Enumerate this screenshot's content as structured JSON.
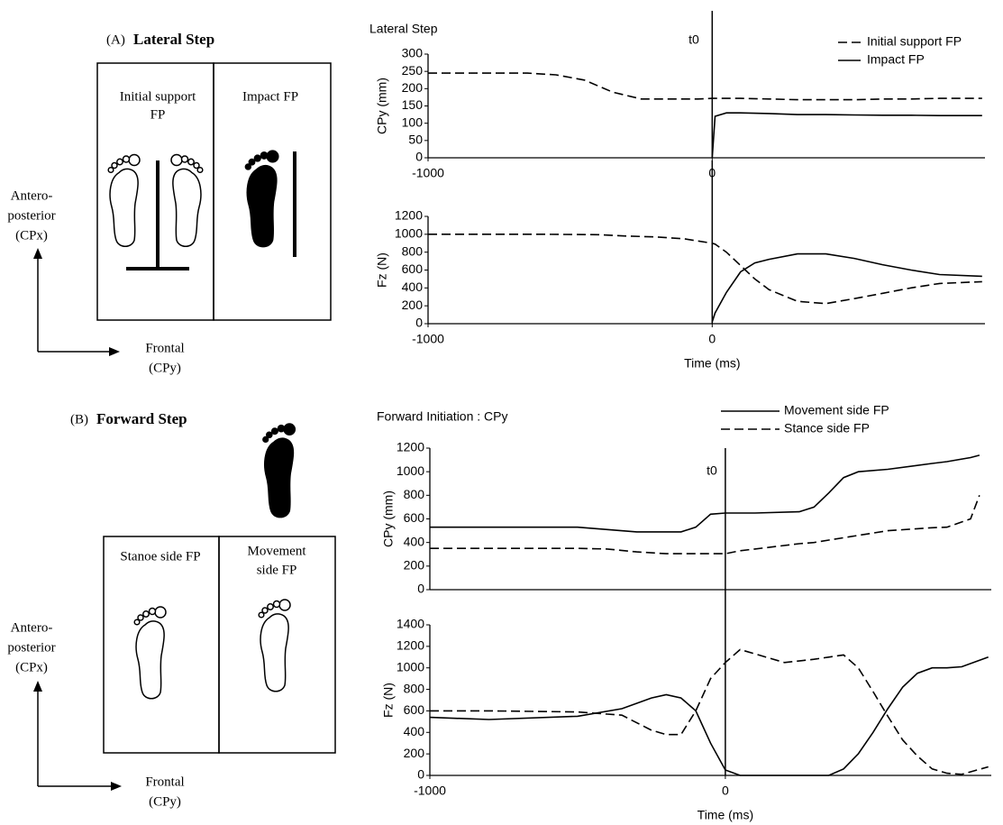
{
  "diagrams": [
    {
      "panel_label": "(A)",
      "title": "Lateral Step",
      "plates": [
        {
          "lines": [
            "Initial support",
            "FP"
          ]
        },
        {
          "lines": [
            "Impact FP"
          ]
        }
      ],
      "vertical_axis_lines": [
        "Antero-",
        "posterior",
        "(CPx)"
      ],
      "horizontal_axis_lines": [
        "Frontal",
        "(CPy)"
      ]
    },
    {
      "panel_label": "(B)",
      "title": "Forward Step",
      "plates": [
        {
          "lines": [
            "Stanoe side FP"
          ]
        },
        {
          "lines": [
            "Movement",
            "side FP"
          ]
        }
      ],
      "vertical_axis_lines": [
        "Antero-",
        "posterior",
        "(CPx)"
      ],
      "horizontal_axis_lines": [
        "Frontal",
        "(CPy)"
      ]
    }
  ],
  "chart_data": [
    {
      "type": "line",
      "title": "Lateral Step",
      "y_label": "CPy (mm)",
      "annotations": [
        {
          "text": "t0",
          "x": 0
        }
      ],
      "legend": "upper right",
      "x": [
        -1000,
        -800,
        -650,
        -550,
        -450,
        -350,
        -250,
        -150,
        -50,
        0,
        10,
        50,
        100,
        200,
        300,
        400,
        500,
        600,
        700,
        800,
        950
      ],
      "series": [
        {
          "name": "Initial support FP",
          "color": "#000000",
          "style": "dashed",
          "values": [
            245,
            245,
            245,
            240,
            225,
            190,
            170,
            170,
            170,
            172,
            172,
            172,
            172,
            170,
            168,
            168,
            168,
            170,
            170,
            172,
            172
          ]
        },
        {
          "name": "Impact FP",
          "color": "#000000",
          "style": "solid",
          "values": [
            null,
            null,
            null,
            null,
            null,
            null,
            null,
            null,
            null,
            0,
            120,
            130,
            130,
            128,
            125,
            125,
            124,
            123,
            123,
            122,
            122
          ]
        }
      ],
      "xlim": [
        -1000,
        960
      ],
      "xticks": [
        -1000,
        0
      ],
      "ylim": [
        0,
        300
      ],
      "yticks": [
        0,
        50,
        100,
        150,
        200,
        250,
        300
      ],
      "grid": false
    },
    {
      "type": "line",
      "x_label": "Time (ms)",
      "y_label": "Fz (N)",
      "x": [
        -1000,
        -800,
        -600,
        -400,
        -300,
        -200,
        -100,
        0,
        10,
        50,
        100,
        150,
        200,
        300,
        400,
        500,
        600,
        700,
        800,
        950
      ],
      "series": [
        {
          "color": "#000000",
          "style": "dashed",
          "values": [
            1000,
            1000,
            1000,
            995,
            980,
            970,
            950,
            900,
            890,
            800,
            650,
            500,
            380,
            250,
            225,
            280,
            340,
            400,
            450,
            470
          ]
        },
        {
          "color": "#000000",
          "style": "solid",
          "values": [
            null,
            null,
            null,
            null,
            null,
            null,
            null,
            20,
            120,
            350,
            580,
            680,
            720,
            780,
            780,
            730,
            660,
            600,
            550,
            530
          ]
        }
      ],
      "xlim": [
        -1000,
        960
      ],
      "xticks": [
        -1000,
        0
      ],
      "ylim": [
        0,
        1200
      ],
      "yticks": [
        0,
        200,
        400,
        600,
        800,
        1000,
        1200
      ],
      "grid": false
    },
    {
      "type": "line",
      "title": "Forward Initiation : CPy",
      "y_label": "CPy (mm)",
      "annotations": [
        {
          "text": "t0",
          "x": 0
        }
      ],
      "legend": "top",
      "x": [
        -1000,
        -700,
        -500,
        -400,
        -300,
        -200,
        -150,
        -100,
        -50,
        0,
        50,
        100,
        250,
        300,
        350,
        400,
        450,
        550,
        700,
        750,
        830,
        860
      ],
      "series": [
        {
          "name": "Movement side FP",
          "color": "#000000",
          "style": "solid",
          "values": [
            530,
            530,
            530,
            510,
            490,
            490,
            490,
            530,
            640,
            650,
            650,
            650,
            660,
            700,
            820,
            950,
            1000,
            1020,
            1070,
            1085,
            1120,
            1140
          ]
        },
        {
          "name": "Stance side FP",
          "color": "#000000",
          "style": "dashed",
          "values": [
            350,
            350,
            350,
            345,
            320,
            305,
            305,
            305,
            305,
            305,
            330,
            345,
            390,
            400,
            420,
            440,
            460,
            500,
            525,
            530,
            600,
            800
          ]
        }
      ],
      "xlim": [
        -1000,
        900
      ],
      "ylim": [
        0,
        1200
      ],
      "yticks": [
        0,
        200,
        400,
        600,
        800,
        1000,
        1200
      ],
      "grid": false
    },
    {
      "type": "line",
      "x_label": "Time (ms)",
      "y_label": "Fz (N)",
      "x": [
        -1000,
        -800,
        -500,
        -350,
        -250,
        -200,
        -150,
        -100,
        -50,
        0,
        50,
        200,
        300,
        350,
        400,
        450,
        500,
        550,
        600,
        650,
        700,
        750,
        800,
        890
      ],
      "series": [
        {
          "color": "#000000",
          "style": "solid",
          "values": [
            540,
            520,
            550,
            620,
            720,
            750,
            720,
            600,
            300,
            50,
            0,
            0,
            0,
            0,
            60,
            200,
            400,
            620,
            820,
            950,
            1000,
            1000,
            1010,
            1100
          ]
        },
        {
          "color": "#000000",
          "style": "dashed",
          "values": [
            600,
            600,
            590,
            560,
            420,
            380,
            380,
            600,
            900,
            1050,
            1170,
            1050,
            1080,
            1100,
            1120,
            1000,
            780,
            550,
            330,
            180,
            60,
            20,
            10,
            80
          ]
        }
      ],
      "xlim": [
        -1000,
        900
      ],
      "xticks": [
        -1000,
        0
      ],
      "ylim": [
        0,
        1400
      ],
      "yticks": [
        0,
        200,
        400,
        600,
        800,
        1000,
        1200,
        1400
      ],
      "grid": false
    }
  ]
}
